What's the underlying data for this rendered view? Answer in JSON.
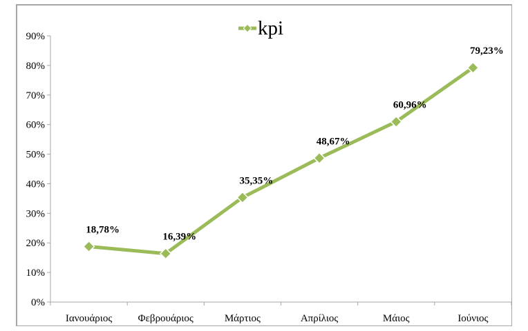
{
  "chart_data": {
    "type": "line",
    "title": "",
    "xlabel": "",
    "ylabel": "",
    "categories": [
      "Ιανουάριος",
      "Φεβρουάριος",
      "Μάρτιος",
      "Απρίλιος",
      "Μάιος",
      "Ιούνιος"
    ],
    "series": [
      {
        "name": "kpi",
        "values": [
          18.78,
          16.39,
          35.35,
          48.67,
          60.96,
          79.23
        ],
        "labels": [
          "18,78%",
          "16,39%",
          "35,35%",
          "48,67%",
          "60,96%",
          "79,23%"
        ],
        "color": "#9bbb59",
        "marker": "diamond"
      }
    ],
    "ylim": [
      0,
      90
    ],
    "yticks": [
      "0%",
      "10%",
      "20%",
      "30%",
      "40%",
      "50%",
      "60%",
      "70%",
      "80%",
      "90%"
    ],
    "grid": false,
    "legend": {
      "position": "top",
      "entries": [
        "kpi"
      ]
    }
  }
}
